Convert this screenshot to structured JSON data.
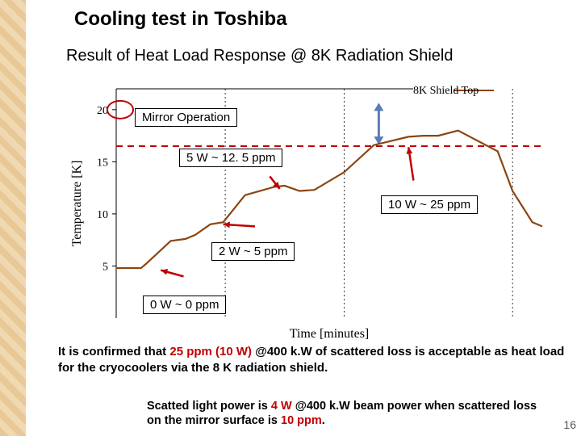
{
  "title": "Cooling test in Toshiba",
  "subtitle": "Result of Heat Load Response @ 8K Radiation Shield",
  "chart": {
    "type": "line",
    "ylabel": "Temperature [K]",
    "xlabel": "Time [minutes]",
    "ylim": [
      0,
      22
    ],
    "yticks": [
      5,
      10,
      15,
      20
    ],
    "legend": {
      "label": "8K Shield Top",
      "color": "#8b4513"
    },
    "grid_color": "#000000",
    "grid_style": "dotted",
    "background": "#ffffff",
    "line_color": "#8b4513",
    "line_width": 2.2,
    "dash_line_color": "#c00000",
    "circle_color": "#c00000",
    "arrow_color": "#c00000",
    "vert_arrow_color": "#5b7bb4",
    "series_points": [
      [
        0,
        4.8
      ],
      [
        25,
        4.8
      ],
      [
        30,
        5.2
      ],
      [
        55,
        7.4
      ],
      [
        70,
        7.6
      ],
      [
        80,
        8.0
      ],
      [
        95,
        9.0
      ],
      [
        108,
        9.2
      ],
      [
        130,
        11.8
      ],
      [
        160,
        12.6
      ],
      [
        170,
        12.7
      ],
      [
        185,
        12.2
      ],
      [
        200,
        12.3
      ],
      [
        230,
        14.0
      ],
      [
        260,
        16.6
      ],
      [
        295,
        17.4
      ],
      [
        310,
        17.5
      ],
      [
        325,
        17.5
      ],
      [
        345,
        18.0
      ],
      [
        385,
        16.0
      ],
      [
        400,
        12.2
      ],
      [
        420,
        9.2
      ],
      [
        430,
        8.8
      ]
    ]
  },
  "annotations": {
    "mirror": "Mirror Operation",
    "five": "5 W ~ 12. 5 ppm",
    "ten": "10 W ~ 25 ppm",
    "two": "2 W ~ 5 ppm",
    "zero": "0 W ~ 0 ppm"
  },
  "conclusion_parts": {
    "p1": "It is confirmed that ",
    "hl": "25 ppm (10 W)",
    "p2": " @400 k.W of scattered loss is acceptable as heat load for the cryocoolers via the 8 K radiation shield."
  },
  "footnote_parts": {
    "p1": "Scatted light power is ",
    "hl1": "4 W",
    "p2": " @400 k.W beam power when scattered loss on the mirror surface is ",
    "hl2": "10 ppm",
    "p3": "."
  },
  "pagenum": "16"
}
